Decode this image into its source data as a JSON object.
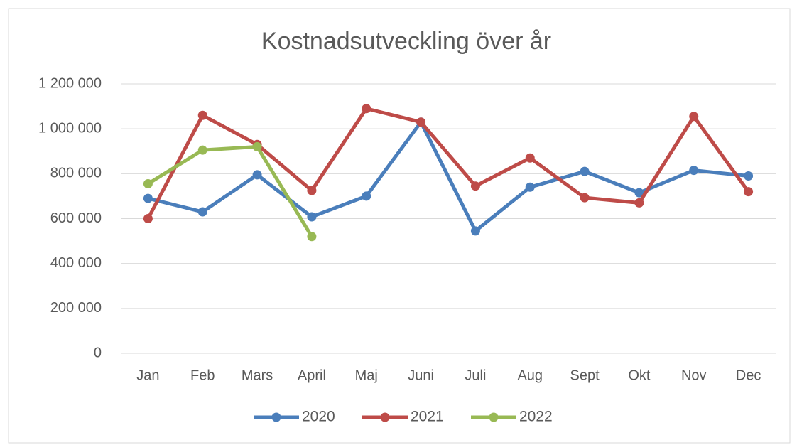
{
  "chart_data": {
    "type": "line",
    "title": "Kostnadsutveckling över år",
    "categories": [
      "Jan",
      "Feb",
      "Mars",
      "April",
      "Maj",
      "Juni",
      "Juli",
      "Aug",
      "Sept",
      "Okt",
      "Nov",
      "Dec"
    ],
    "series": [
      {
        "name": "2020",
        "color": "#4a7ebb",
        "values": [
          690000,
          630000,
          795000,
          608000,
          700000,
          1030000,
          545000,
          740000,
          810000,
          715000,
          815000,
          790000
        ]
      },
      {
        "name": "2021",
        "color": "#be4b48",
        "values": [
          600000,
          1060000,
          930000,
          725000,
          1090000,
          1030000,
          745000,
          870000,
          693000,
          670000,
          1055000,
          720000
        ]
      },
      {
        "name": "2022",
        "color": "#98b954",
        "values": [
          755000,
          905000,
          920000,
          520000,
          null,
          null,
          null,
          null,
          null,
          null,
          null,
          null
        ]
      }
    ],
    "ylim": [
      0,
      1200000
    ],
    "yticks": [
      0,
      {
        "value": 200000,
        "label": "200 000"
      },
      {
        "value": 400000,
        "label": "400 000"
      },
      {
        "value": 600000,
        "label": "600 000"
      },
      {
        "value": 800000,
        "label": "800 000"
      },
      {
        "value": 1000000,
        "label": "1 000 000"
      },
      {
        "value": 1200000,
        "label": "1 200 000"
      }
    ],
    "grid": true,
    "legend": "bottom"
  }
}
